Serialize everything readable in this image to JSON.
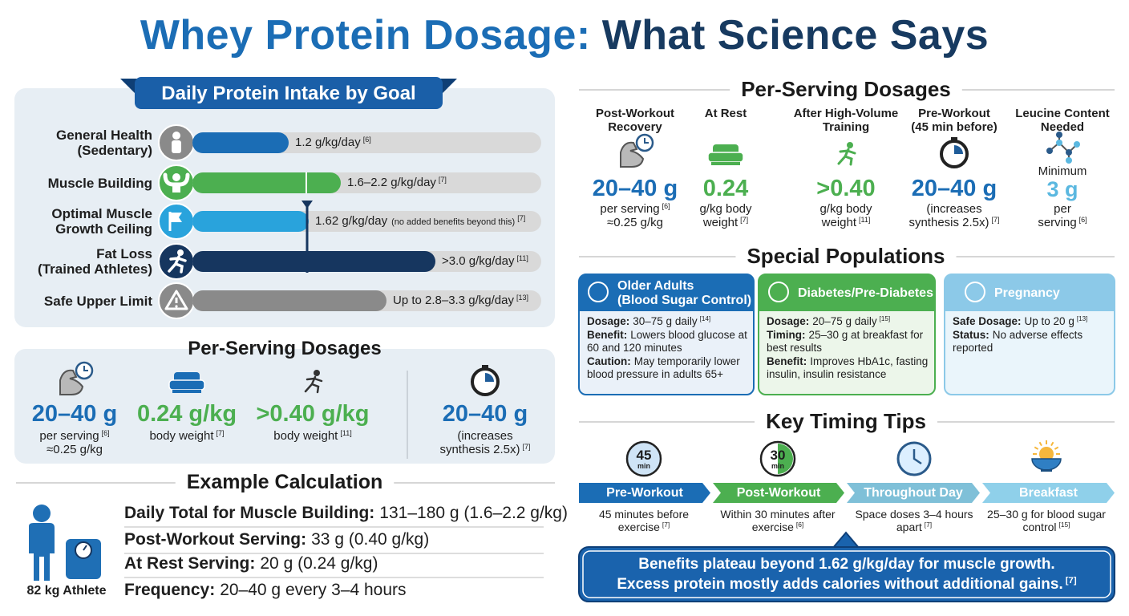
{
  "header": {
    "title_part1": "Whey Protein Dosage:",
    "title_part2": "What Science Says"
  },
  "daily_intake": {
    "title": "Daily Protein Intake by Goal",
    "rows": [
      {
        "label": [
          "General Health",
          "(Sedentary)"
        ],
        "value": "1.2 g/kg/day",
        "ref": "[6]"
      },
      {
        "label": [
          "Muscle Building"
        ],
        "value": "1.6–2.2 g/kg/day",
        "ref": "[7]"
      },
      {
        "label": [
          "Optimal Muscle",
          "Growth Ceiling"
        ],
        "value": "1.62 g/kg/day",
        "note": "(no added benefits beyond this)",
        "ref": "[7]"
      },
      {
        "label": [
          "Fat Loss",
          "(Trained Athletes)"
        ],
        "value": ">3.0 g/kg/day",
        "ref": "[11]"
      },
      {
        "label": [
          "Safe Upper Limit"
        ],
        "value": "Up to 2.8–3.3 g/kg/day",
        "ref": "[13]"
      }
    ]
  },
  "per_serving_summary": {
    "title": "Per-Serving Dosages",
    "items": [
      {
        "value": "20–40 g",
        "lines": [
          {
            "text": "per serving",
            "ref": "[6]"
          },
          {
            "text": "≈0.25 g/kg"
          }
        ]
      },
      {
        "value": "0.24 g/kg",
        "lines": [
          {
            "text": "body weight",
            "ref": "[7]"
          }
        ]
      },
      {
        "value": ">0.40 g/kg",
        "lines": [
          {
            "text": "body weight",
            "ref": "[11]"
          }
        ]
      },
      {
        "value": "20–40 g",
        "lines": [
          {
            "text": "(increases"
          },
          {
            "text": "synthesis 2.5x)",
            "ref": "[7]"
          }
        ]
      }
    ]
  },
  "example_calculation": {
    "title": "Example Calculation",
    "athlete": "82 kg Athlete",
    "rows": [
      {
        "label": "Daily Total for Muscle Building:",
        "value": "131–180 g (1.6–2.2 g/kg)"
      },
      {
        "label": "Post-Workout Serving:",
        "value": "33 g (0.40 g/kg)"
      },
      {
        "label": "At Rest Serving:",
        "value": "20 g (0.24 g/kg)"
      },
      {
        "label": "Frequency:",
        "value": "20–40 g every 3–4 hours"
      }
    ]
  },
  "per_serving_dosages": {
    "title": "Per-Serving Dosages",
    "items": [
      {
        "header": [
          "Post-Workout",
          "Recovery"
        ],
        "value": "20–40 g",
        "lines": [
          {
            "text": "per serving",
            "ref": "[6]"
          },
          {
            "text": "≈0.25 g/kg"
          }
        ]
      },
      {
        "header": [
          "At Rest"
        ],
        "value": "0.24",
        "lines": [
          {
            "text": "g/kg body"
          },
          {
            "text": "weight",
            "ref": "[7]"
          }
        ]
      },
      {
        "header": [
          "After High-Volume",
          "Training"
        ],
        "value": ">0.40",
        "lines": [
          {
            "text": "g/kg body"
          },
          {
            "text": "weight",
            "ref": "[11]"
          }
        ]
      },
      {
        "header": [
          "Pre-Workout",
          "(45 min before)"
        ],
        "value": "20–40 g",
        "lines": [
          {
            "text": "(increases"
          },
          {
            "text": "synthesis 2.5x)",
            "ref": "[7]"
          }
        ]
      },
      {
        "header": [
          "Leucine Content",
          "Needed"
        ],
        "prefix": "Minimum",
        "value": "3 g",
        "lines": [
          {
            "text": "per"
          },
          {
            "text": "serving",
            "ref": "[6]"
          }
        ]
      }
    ]
  },
  "special_populations": {
    "title": "Special Populations",
    "cards": [
      {
        "title": [
          "Older Adults",
          "(Blood Sugar Control)"
        ],
        "fields": [
          {
            "label": "Dosage:",
            "text": "30–75 g daily",
            "ref": "[14]"
          },
          {
            "label": "Benefit:",
            "text": "Lowers blood glucose at 60 and 120 minutes"
          },
          {
            "label": "Caution:",
            "text": "May temporarily lower blood pressure in adults 65+"
          }
        ]
      },
      {
        "title": [
          "Diabetes/Pre-Diabetes"
        ],
        "fields": [
          {
            "label": "Dosage:",
            "text": "20–75 g daily",
            "ref": "[15]"
          },
          {
            "label": "Timing:",
            "text": "25–30 g at breakfast for best results"
          },
          {
            "label": "Benefit:",
            "text": "Improves HbA1c, fasting insulin, insulin resistance"
          }
        ]
      },
      {
        "title": [
          "Pregnancy"
        ],
        "fields": [
          {
            "label": "Safe Dosage:",
            "text": "Up to 20 g",
            "ref": "[13]"
          },
          {
            "label": "Status:",
            "text": "No adverse effects reported"
          }
        ]
      }
    ]
  },
  "timing_tips": {
    "title": "Key Timing Tips",
    "items": [
      {
        "badge": "45",
        "badge_unit": "min",
        "label": "Pre-Workout",
        "desc": "45 minutes before exercise",
        "ref": "[7]"
      },
      {
        "badge": "30",
        "badge_unit": "min",
        "label": "Post-Workout",
        "desc": "Within 30 minutes after exercise",
        "ref": "[6]"
      },
      {
        "label": "Throughout Day",
        "desc": "Space doses 3–4 hours apart",
        "ref": "[7]"
      },
      {
        "label": "Breakfast",
        "desc": "25–30 g for blood sugar control",
        "ref": "[15]"
      }
    ]
  },
  "callout": {
    "lines": [
      "Benefits plateau beyond 1.62 g/kg/day for muscle growth.",
      "Excess protein mostly adds calories without additional gains."
    ],
    "ref": "[7]"
  }
}
